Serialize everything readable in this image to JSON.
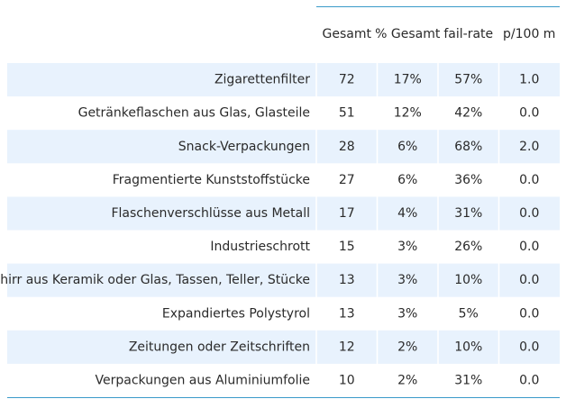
{
  "table": {
    "header": [
      "Gesamt",
      "% Gesamt",
      "fail-rate",
      "p/100 m"
    ],
    "rows": [
      [
        "Zigarettenfilter",
        "72",
        "17%",
        "57%",
        "1.0"
      ],
      [
        "Getränkeflaschen aus Glas, Glasteile",
        "51",
        "12%",
        "42%",
        "0.0"
      ],
      [
        "Snack-Verpackungen",
        "28",
        "6%",
        "68%",
        "2.0"
      ],
      [
        "Fragmentierte Kunststoffstücke",
        "27",
        "6%",
        "36%",
        "0.0"
      ],
      [
        "Flaschenverschlüsse aus Metall",
        "17",
        "4%",
        "31%",
        "0.0"
      ],
      [
        "Industrieschrott",
        "15",
        "3%",
        "26%",
        "0.0"
      ],
      [
        "Geschirr aus Keramik oder Glas, Tassen, Teller, Stücke",
        "13",
        "3%",
        "10%",
        "0.0"
      ],
      [
        "Expandiertes Polystyrol",
        "13",
        "3%",
        "5%",
        "0.0"
      ],
      [
        "Zeitungen oder Zeitschriften",
        "12",
        "2%",
        "10%",
        "0.0"
      ],
      [
        "Verpackungen aus Aluminiumfolie",
        "10",
        "2%",
        "31%",
        "0.0"
      ]
    ]
  }
}
